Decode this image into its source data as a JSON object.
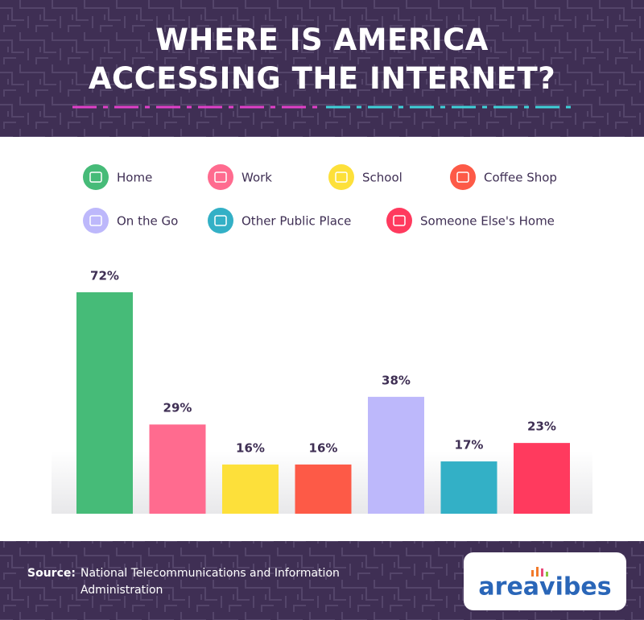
{
  "chart_data": {
    "type": "bar",
    "title": "WHERE IS AMERICA ACCESSING THE INTERNET?",
    "categories": [
      "Home",
      "Work",
      "School",
      "Coffee Shop",
      "On the Go",
      "Other Public Place",
      "Someone Else's Home"
    ],
    "values": [
      72,
      29,
      16,
      16,
      38,
      17,
      23
    ],
    "value_labels": [
      "72%",
      "29%",
      "16%",
      "16%",
      "38%",
      "17%",
      "23%"
    ],
    "colors": [
      "#46bb78",
      "#ff6b8f",
      "#fde03a",
      "#fd5a47",
      "#bdb8fb",
      "#33b0c6",
      "#ff3a5e"
    ],
    "source_label": "Source:",
    "source": "National Telecommunications and Information Administration",
    "logo": "areavibes"
  }
}
